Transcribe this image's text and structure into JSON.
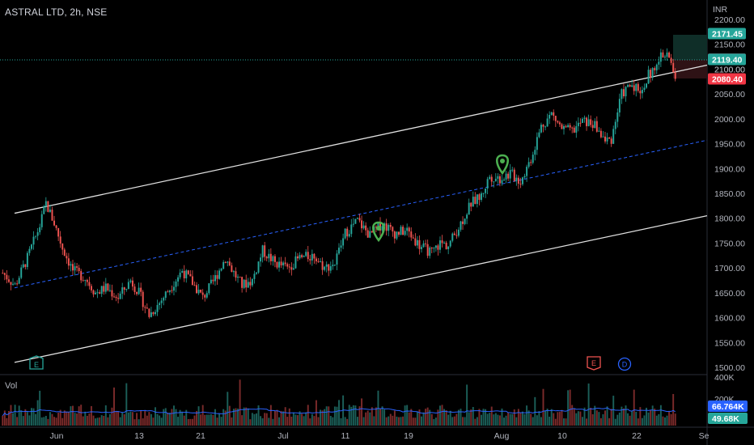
{
  "header": {
    "title": "ASTRAL LTD, 2h, NSE"
  },
  "volume_pane": {
    "label": "Vol"
  },
  "colors": {
    "up": "#26a69a",
    "down": "#ef5350",
    "vol_up": "#1b5e58",
    "vol_down": "#7a2a2a",
    "channel": "#e0e0e0",
    "median": "#2962ff",
    "vol_ma": "#2962ff",
    "current": "#787b86",
    "target": "#26a69a",
    "stop": "#f23645"
  },
  "chart_data": {
    "type": "candlestick",
    "currency": "INR",
    "y_ticks": [
      "2200.00",
      "2150.00",
      "2100.00",
      "2050.00",
      "2000.00",
      "1950.00",
      "1900.00",
      "1850.00",
      "1800.00",
      "1750.00",
      "1700.00",
      "1650.00",
      "1600.00",
      "1550.00",
      "1500.00"
    ],
    "x_ticks": [
      "Jun",
      "13",
      "21",
      "Jul",
      "11",
      "19",
      "Aug",
      "10",
      "22",
      "Se"
    ],
    "ylim": [
      1500,
      2200
    ],
    "price_labels": [
      {
        "value": "2171.45",
        "kind": "target"
      },
      {
        "value": "2120.00",
        "kind": "current"
      },
      {
        "value": "2119.40",
        "kind": "target"
      },
      {
        "value": "2100.00",
        "kind": "tick"
      },
      {
        "value": "2080.40",
        "kind": "stop"
      }
    ],
    "volume": {
      "scale_labels": [
        "400K",
        "200K"
      ],
      "last_labels": [
        {
          "value": "66.764K",
          "kind": "ma"
        },
        {
          "value": "49.68K",
          "kind": "vol"
        }
      ]
    },
    "channel": {
      "upper": [
        [
          1810,
          2108
        ]
      ],
      "lower": [
        [
          1510,
          1805
        ]
      ],
      "median": [
        [
          1660,
          1957
        ]
      ]
    },
    "events": [
      "E",
      "D"
    ],
    "path_points": [
      [
        0,
        1690
      ],
      [
        6,
        1665
      ],
      [
        12,
        1720
      ],
      [
        18,
        1785
      ],
      [
        21,
        1830
      ],
      [
        25,
        1790
      ],
      [
        29,
        1740
      ],
      [
        34,
        1695
      ],
      [
        40,
        1680
      ],
      [
        45,
        1650
      ],
      [
        50,
        1660
      ],
      [
        56,
        1640
      ],
      [
        62,
        1675
      ],
      [
        66,
        1650
      ],
      [
        71,
        1605
      ],
      [
        76,
        1630
      ],
      [
        82,
        1665
      ],
      [
        87,
        1695
      ],
      [
        92,
        1670
      ],
      [
        97,
        1640
      ],
      [
        102,
        1672
      ],
      [
        108,
        1720
      ],
      [
        112,
        1690
      ],
      [
        116,
        1665
      ],
      [
        121,
        1675
      ],
      [
        126,
        1735
      ],
      [
        132,
        1710
      ],
      [
        138,
        1700
      ],
      [
        144,
        1720
      ],
      [
        151,
        1725
      ],
      [
        156,
        1700
      ],
      [
        161,
        1710
      ],
      [
        166,
        1770
      ],
      [
        172,
        1795
      ],
      [
        178,
        1765
      ],
      [
        184,
        1790
      ],
      [
        190,
        1770
      ],
      [
        196,
        1775
      ],
      [
        202,
        1745
      ],
      [
        208,
        1730
      ],
      [
        212,
        1750
      ],
      [
        216,
        1745
      ],
      [
        222,
        1790
      ],
      [
        227,
        1830
      ],
      [
        232,
        1845
      ],
      [
        236,
        1885
      ],
      [
        241,
        1880
      ],
      [
        246,
        1890
      ],
      [
        251,
        1875
      ],
      [
        256,
        1920
      ],
      [
        261,
        1985
      ],
      [
        266,
        2010
      ],
      [
        271,
        1980
      ],
      [
        276,
        1975
      ],
      [
        281,
        1995
      ],
      [
        286,
        1990
      ],
      [
        289,
        1975
      ],
      [
        292,
        1955
      ],
      [
        295,
        1960
      ],
      [
        300,
        2050
      ],
      [
        305,
        2070
      ],
      [
        310,
        2055
      ],
      [
        313,
        2090
      ],
      [
        316,
        2095
      ],
      [
        319,
        2125
      ],
      [
        321,
        2135
      ],
      [
        324,
        2110
      ],
      [
        326,
        2080
      ]
    ]
  }
}
